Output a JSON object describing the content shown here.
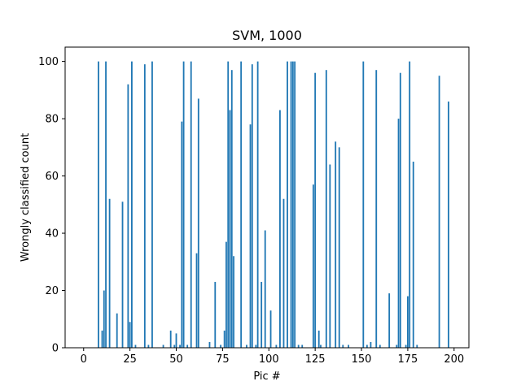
{
  "chart_data": {
    "type": "bar",
    "title": "SVM, 1000",
    "xlabel": "Pic #",
    "ylabel": "Wrongly classified count",
    "xlim": [
      -10,
      208
    ],
    "ylim": [
      0,
      105
    ],
    "xticks": [
      0,
      25,
      50,
      75,
      100,
      125,
      150,
      175,
      200
    ],
    "yticks": [
      0,
      20,
      40,
      60,
      80,
      100
    ],
    "grid": false,
    "legend": "none",
    "bar_color": "#1f77b4",
    "bar_width": 0.8,
    "x": [
      8,
      10,
      11,
      12,
      14,
      18,
      21,
      24,
      25,
      26,
      28,
      33,
      35,
      37,
      43,
      47,
      49,
      50,
      52,
      53,
      54,
      56,
      58,
      61,
      62,
      68,
      71,
      74,
      76,
      77,
      78,
      79,
      80,
      81,
      85,
      88,
      90,
      91,
      93,
      94,
      96,
      98,
      101,
      104,
      106,
      108,
      110,
      112,
      113,
      114,
      116,
      118,
      124,
      125,
      127,
      128,
      131,
      133,
      136,
      138,
      140,
      143,
      151,
      153,
      155,
      158,
      160,
      165,
      169,
      170,
      171,
      174,
      175,
      176,
      178,
      180,
      192,
      197
    ],
    "values": [
      100,
      6,
      20,
      100,
      52,
      12,
      51,
      92,
      9,
      100,
      1,
      99,
      1,
      100,
      1,
      6,
      1,
      5,
      1,
      79,
      100,
      1,
      100,
      33,
      87,
      2,
      23,
      1,
      6,
      37,
      100,
      83,
      97,
      32,
      100,
      1,
      78,
      99,
      1,
      100,
      23,
      41,
      13,
      1,
      83,
      52,
      100,
      100,
      100,
      100,
      1,
      1,
      57,
      96,
      6,
      1,
      97,
      64,
      72,
      70,
      1,
      1,
      100,
      1,
      2,
      97,
      1,
      19,
      1,
      80,
      96,
      1,
      18,
      100,
      65,
      1,
      95,
      86
    ]
  }
}
